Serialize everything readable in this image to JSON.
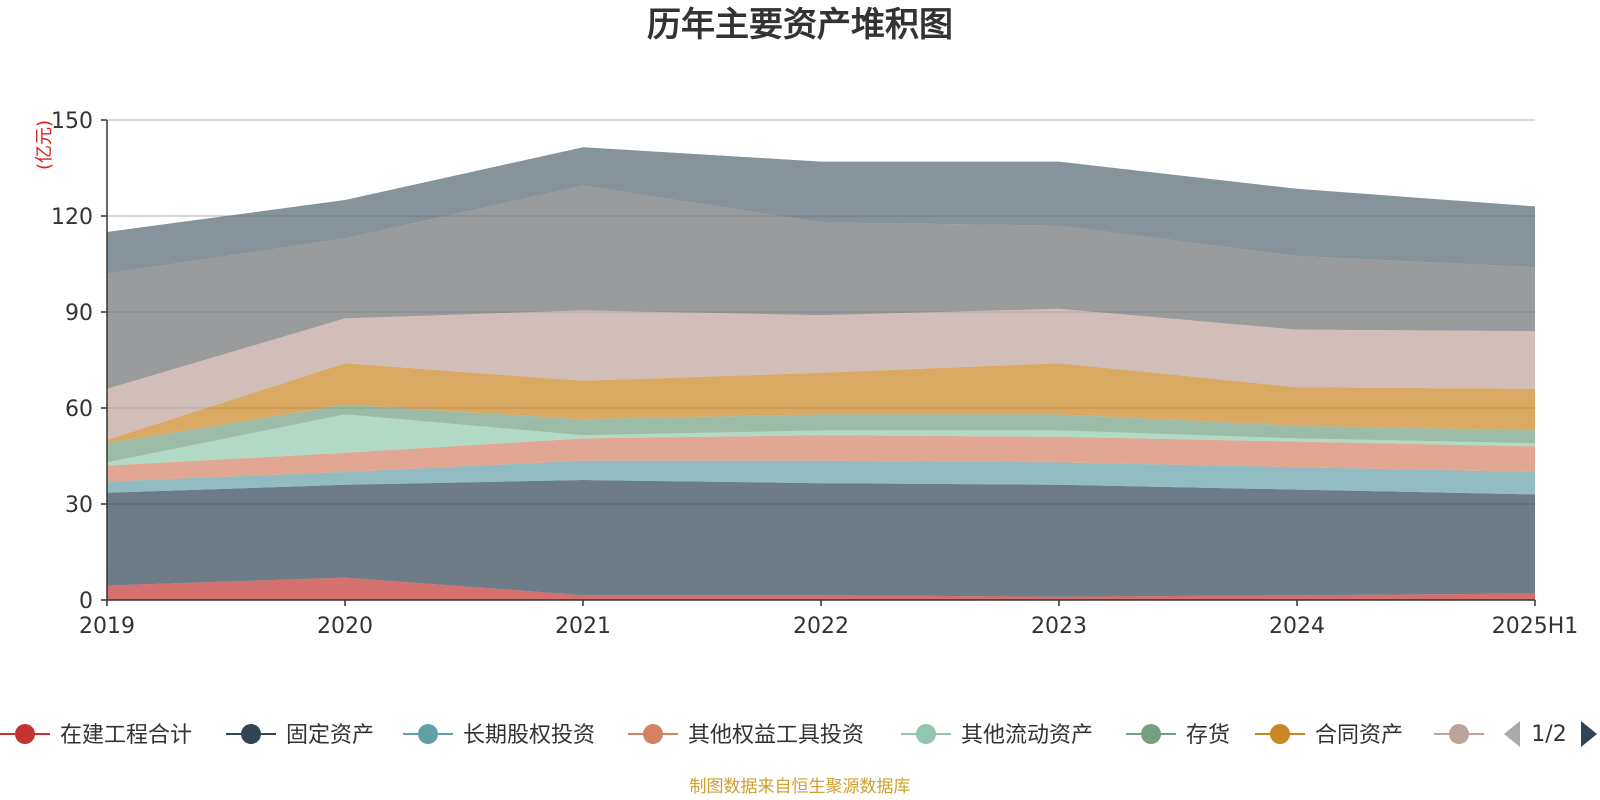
{
  "chart_data": {
    "type": "area",
    "stacked": true,
    "title": "历年主要资产堆积图",
    "ylabel": "(亿元)",
    "xlabel": "",
    "categories": [
      "2019",
      "2020",
      "2021",
      "2022",
      "2023",
      "2024",
      "2025H1"
    ],
    "ylim": [
      0,
      150
    ],
    "yticks": [
      "0",
      "30",
      "60",
      "90",
      "120",
      "150"
    ],
    "grid": true,
    "series": [
      {
        "name": "在建工程合计",
        "color": "#c23531",
        "values": [
          4.5,
          7,
          1.5,
          1.5,
          1,
          1.5,
          2
        ]
      },
      {
        "name": "固定资产",
        "color": "#2f4554",
        "values": [
          29,
          29,
          36,
          35,
          35,
          33,
          31
        ]
      },
      {
        "name": "长期股权投资",
        "color": "#61a0a8",
        "values": [
          3.5,
          4,
          6,
          7,
          7,
          7,
          7
        ]
      },
      {
        "name": "其他权益工具投资",
        "color": "#d48265",
        "values": [
          5,
          6,
          7,
          8,
          8,
          8,
          8
        ]
      },
      {
        "name": "其他流动资产",
        "color": "#91c7ae",
        "values": [
          1,
          12,
          1,
          1.5,
          2,
          1,
          1
        ]
      },
      {
        "name": "存货",
        "color": "#749f83",
        "values": [
          6,
          3,
          5,
          5,
          5,
          4,
          4
        ]
      },
      {
        "name": "合同资产",
        "color": "#ca8622",
        "values": [
          1,
          13,
          12,
          13,
          16,
          12,
          13
        ]
      },
      {
        "name": "",
        "color": "#bda29a",
        "values": [
          16,
          14,
          22,
          18,
          17,
          18,
          18
        ]
      },
      {
        "name": "",
        "color": "#6e7074",
        "values": [
          36,
          25,
          39,
          29,
          26,
          23,
          20
        ]
      },
      {
        "name": "",
        "color": "#546570",
        "values": [
          13,
          12,
          12,
          19,
          20,
          21,
          19
        ]
      }
    ],
    "legend": {
      "position": "bottom",
      "page_indicator": "1/2"
    },
    "source_note": "制图数据来自恒生聚源数据库"
  }
}
